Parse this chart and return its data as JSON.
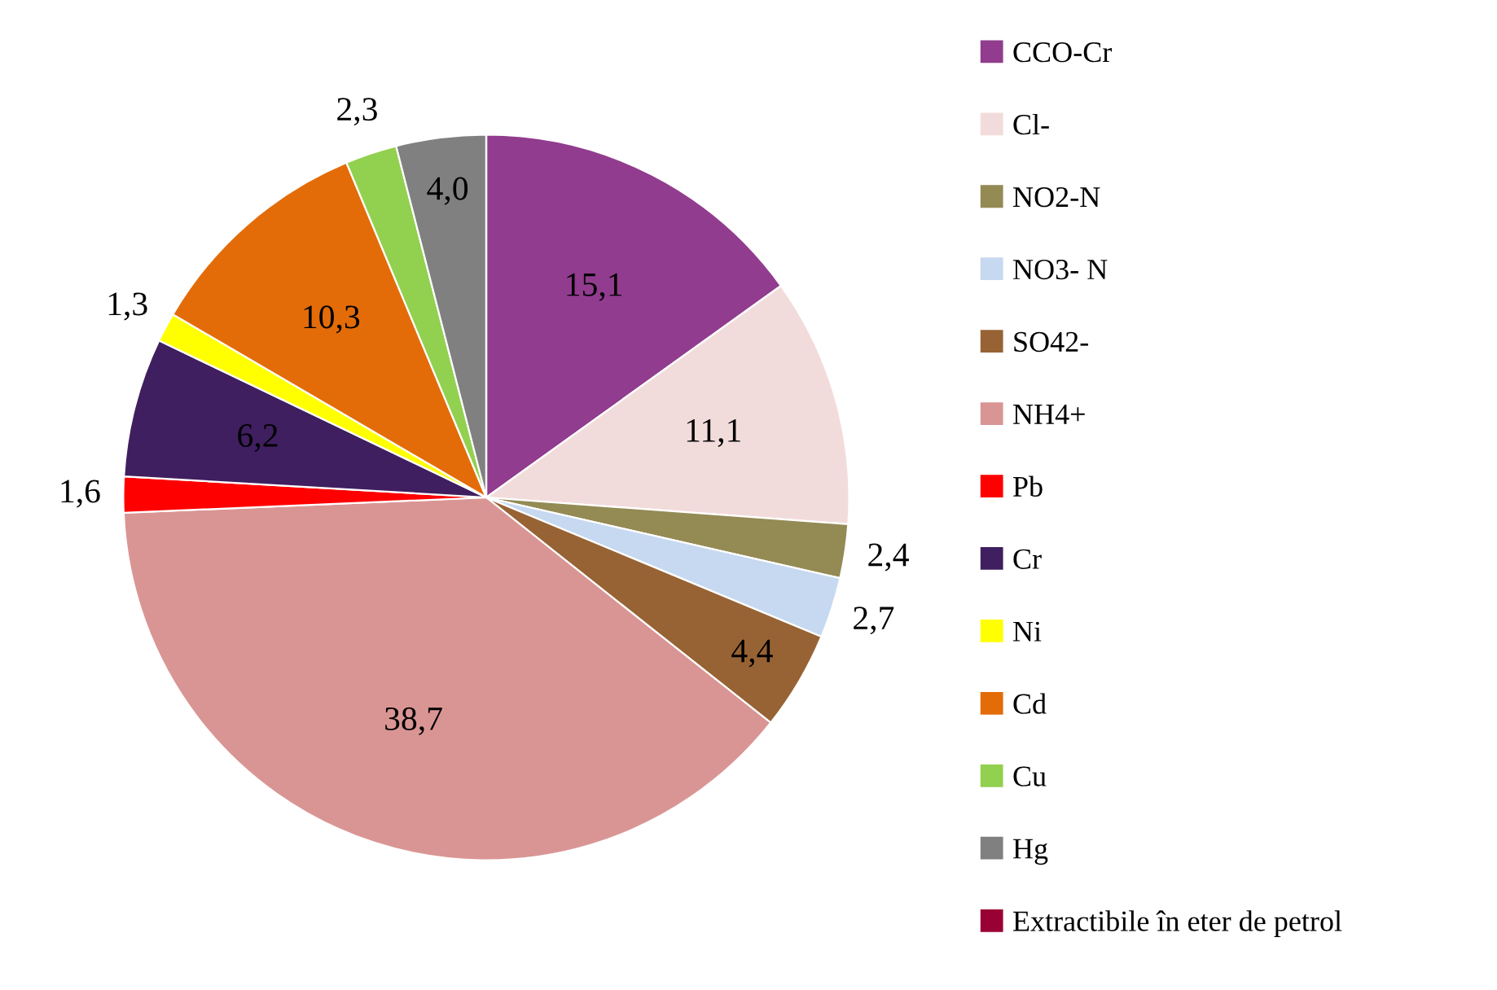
{
  "chart_data": {
    "type": "pie",
    "categories": [
      "CCO-Cr",
      "Cl-",
      "NO2-N",
      "NO3- N",
      "SO42-",
      "NH4+",
      "Pb",
      "Cr",
      "Ni",
      "Cd",
      "Cu",
      "Hg",
      "Extractibile în eter de petrol"
    ],
    "values": [
      15.1,
      11.1,
      2.4,
      2.7,
      4.4,
      38.7,
      1.6,
      6.2,
      1.3,
      10.3,
      2.3,
      4.0,
      0
    ],
    "value_labels": [
      "15,1",
      "11,1",
      "2,4",
      "2,7",
      "4,4",
      "38,7",
      "1,6",
      "6,2",
      "1,3",
      "10,3",
      "2,3",
      "4,0",
      null
    ],
    "colors": [
      "#913c8e",
      "#f2dcdb",
      "#948a54",
      "#c6d9f0",
      "#976334",
      "#d99594",
      "#ff0000",
      "#3f1f5f",
      "#ffff00",
      "#e36c09",
      "#92d050",
      "#808080",
      "#990033"
    ],
    "legend": "right"
  }
}
